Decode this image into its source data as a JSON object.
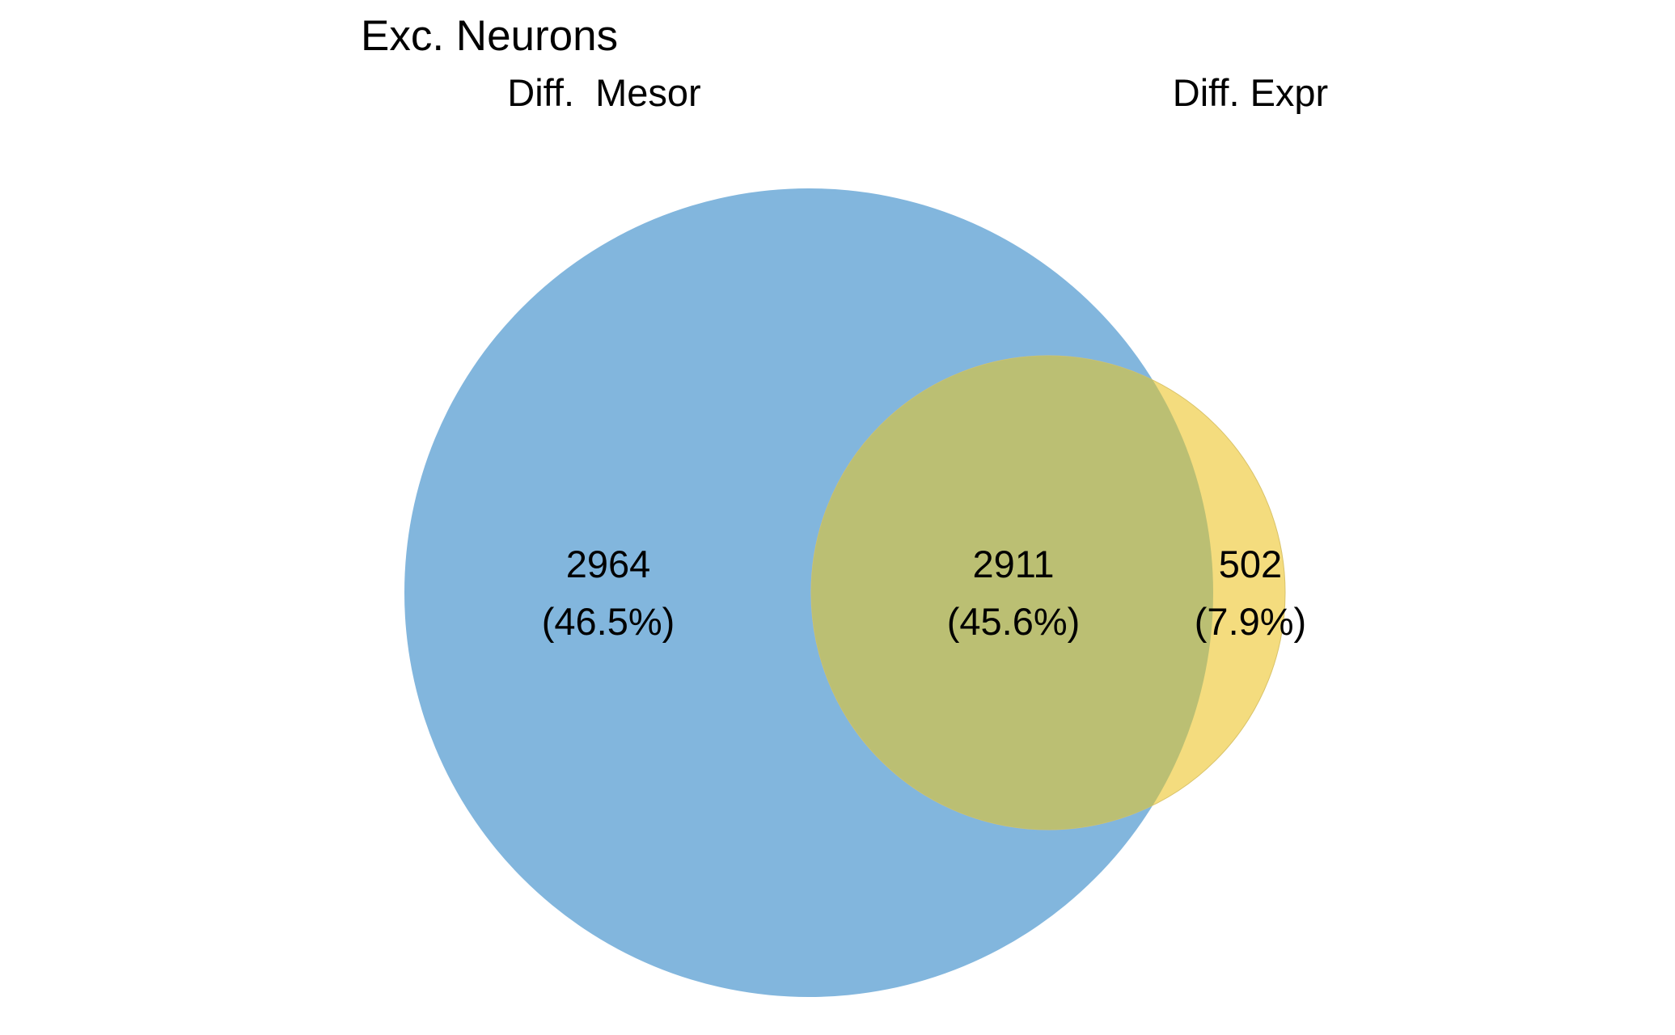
{
  "title": "Exc. Neurons",
  "sets": [
    {
      "name": "Diff.  Mesor",
      "color": "#82B6DD"
    },
    {
      "name": "Diff. Expr",
      "color": "#F4DC7E"
    }
  ],
  "overlap_color": "#BBBF73",
  "regions": [
    {
      "id": "mesor_only",
      "sets": [
        "Diff.  Mesor"
      ],
      "count": "2964",
      "percent": "(46.5%)"
    },
    {
      "id": "both",
      "sets": [
        "Diff.  Mesor",
        "Diff. Expr"
      ],
      "count": "2911",
      "percent": "(45.6%)"
    },
    {
      "id": "expr_only",
      "sets": [
        "Diff. Expr"
      ],
      "count": "502",
      "percent": "(7.9%)"
    }
  ]
}
